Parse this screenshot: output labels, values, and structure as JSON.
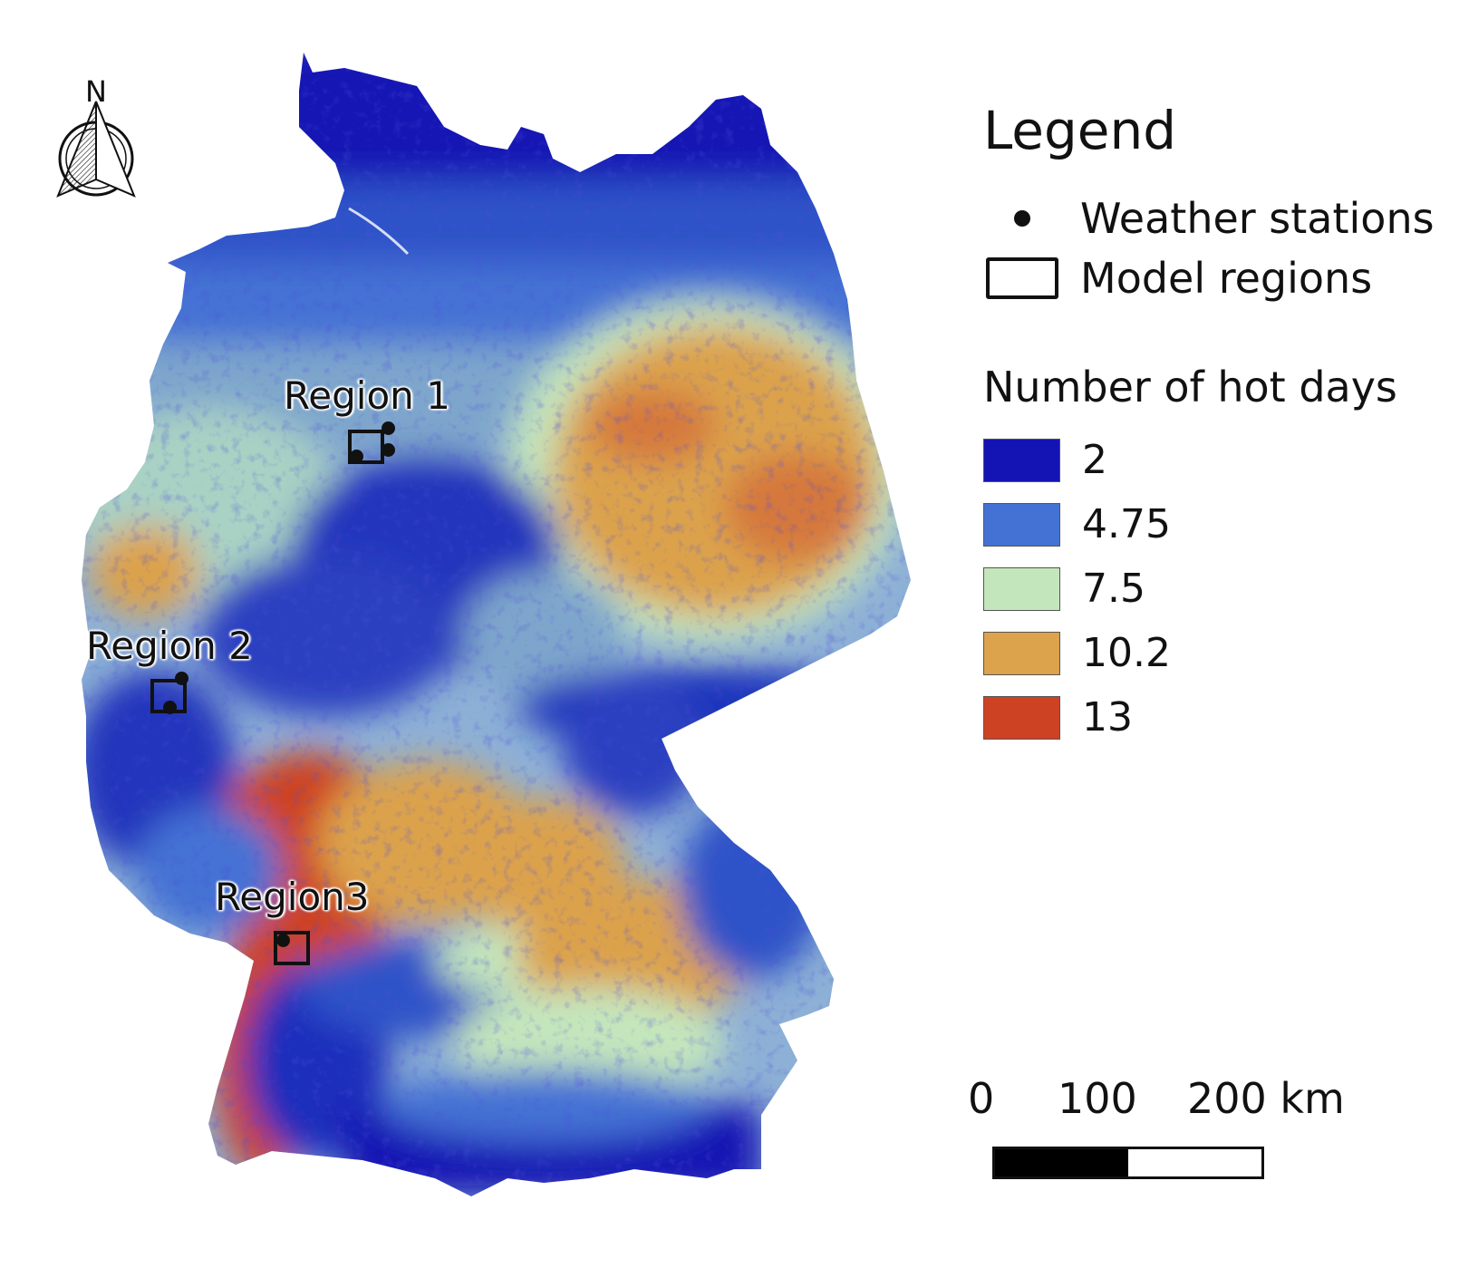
{
  "map": {
    "regions": [
      {
        "label": "Region 1"
      },
      {
        "label": "Region 2"
      },
      {
        "label": "Region3"
      }
    ]
  },
  "north_arrow": {
    "label": "N"
  },
  "legend": {
    "title": "Legend",
    "items": [
      {
        "symbol": "dot",
        "label": "Weather stations"
      },
      {
        "symbol": "rectangle",
        "label": "Model regions"
      }
    ],
    "hot_days_title": "Number of hot days",
    "classes": [
      {
        "value": "2",
        "color": "#1414b4"
      },
      {
        "value": "4.75",
        "color": "#4472d4"
      },
      {
        "value": "7.5",
        "color": "#c4e6bc"
      },
      {
        "value": "10.2",
        "color": "#dca24c"
      },
      {
        "value": "13",
        "color": "#ce4224"
      }
    ]
  },
  "scale_bar": {
    "labels": [
      "0",
      "100",
      "200 km"
    ],
    "colors": [
      "#000000",
      "#ffffff"
    ]
  }
}
